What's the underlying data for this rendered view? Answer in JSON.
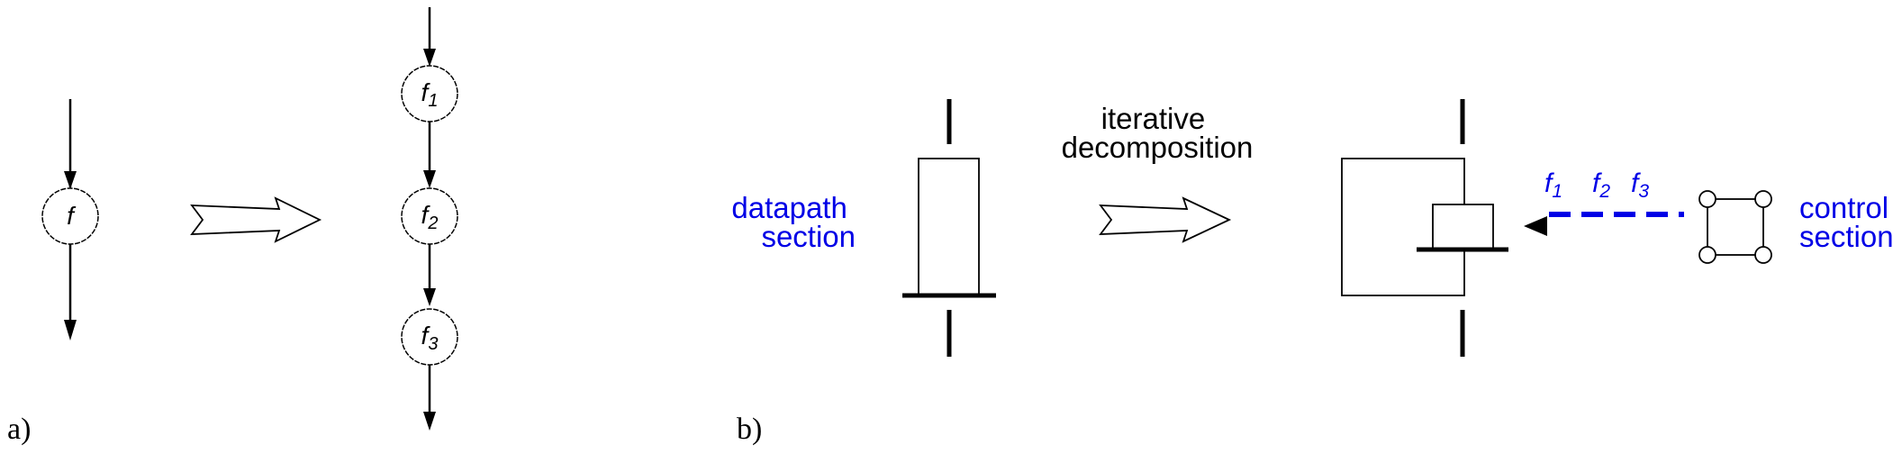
{
  "panel_a": {
    "label": "a)",
    "single_node": {
      "name": "f",
      "sub": ""
    },
    "chain_nodes": [
      {
        "name": "f",
        "sub": "1"
      },
      {
        "name": "f",
        "sub": "2"
      },
      {
        "name": "f",
        "sub": "3"
      }
    ]
  },
  "panel_b": {
    "label": "b)",
    "datapath_label": [
      "datapath",
      "section"
    ],
    "transform_label": [
      "iterative",
      "decomposition"
    ],
    "control_label": [
      "control",
      "section"
    ],
    "control_signals": [
      {
        "name": "f",
        "sub": "1"
      },
      {
        "name": "f",
        "sub": "2"
      },
      {
        "name": "f",
        "sub": "3"
      }
    ]
  },
  "colors": {
    "ink": "#000000",
    "accent": "#0000e6"
  }
}
